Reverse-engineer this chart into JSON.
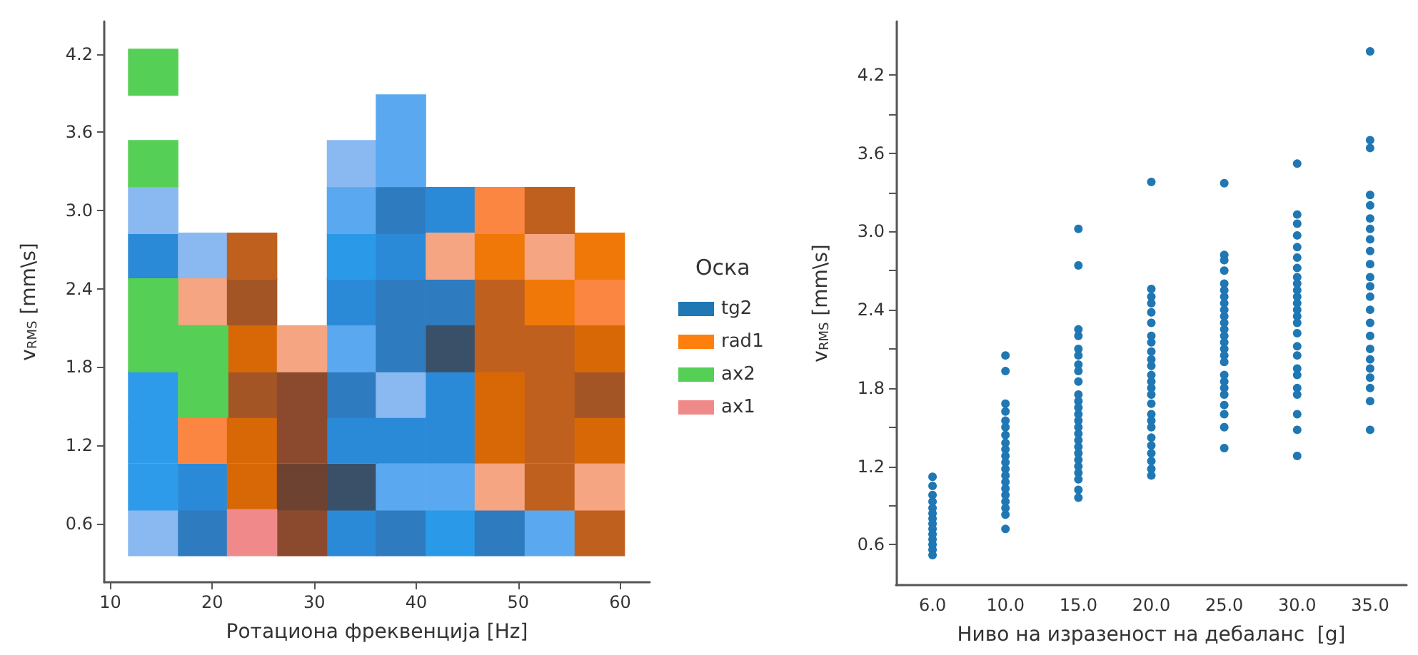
{
  "chart_data": [
    {
      "type": "scatter",
      "xlabel": "Ротациона фреквенција [Hz]",
      "ylabel": "v$_{RMS}$ [mm\\s]",
      "legend_title": "Оска",
      "legend": "right",
      "marker": "square",
      "grid": false,
      "xlim": [
        9.4,
        62.9
      ],
      "xticks": [
        10,
        20,
        30,
        40,
        50,
        60
      ],
      "ylim": [
        0.15,
        4.45
      ],
      "yticks": [
        0.6,
        1.2,
        1.8,
        2.4,
        {
          "value": 3,
          "label": "3.0"
        },
        3.6,
        4.2
      ],
      "series": [
        {
          "name": "tg2",
          "color": "#1f77b4",
          "x": [
            14.2,
            19.1,
            33.7,
            38.5,
            43.4,
            48.2,
            53.1,
            14.2,
            19.1,
            33.7,
            38.5,
            43.4,
            14.2,
            33.7,
            38.5,
            43.4,
            14.2,
            33.7,
            38.5,
            43.4,
            33.7,
            38.5,
            43.4,
            33.7,
            38.5,
            43.4,
            14.2,
            19.1,
            33.7,
            38.5,
            14.2,
            33.7,
            38.5,
            43.4,
            33.7,
            38.5,
            38.5
          ],
          "values": [
            0.53,
            0.53,
            0.53,
            0.53,
            0.53,
            0.53,
            0.53,
            0.88,
            0.88,
            0.88,
            0.88,
            0.88,
            1.24,
            1.24,
            1.24,
            1.24,
            1.59,
            1.59,
            1.59,
            1.59,
            1.94,
            1.94,
            1.94,
            2.3,
            2.3,
            2.3,
            2.65,
            2.65,
            2.65,
            2.65,
            3.0,
            3.0,
            3.0,
            3.0,
            3.36,
            3.36,
            3.71
          ],
          "colors": [
            "#8ab8f0",
            "#2e7bbf",
            "#2a8ad8",
            "#2e7bbf",
            "#2a9ae8",
            "#2e7bbf",
            "#5aa9f0",
            "#2e9bea",
            "#2a8ad8",
            "#3a5068",
            "#5aa9f0",
            "#5aa9f0",
            "#2e9bea",
            "#2a8ad8",
            "#2a8ad8",
            "#2a8ad8",
            "#2e9bea",
            "#2e7bbf",
            "#8ab8f0",
            "#2a8ad8",
            "#5aa9f0",
            "#2e7bbf",
            "#3a5068",
            "#2a8ad8",
            "#2e7bbf",
            "#2e7bbf",
            "#2a8ad8",
            "#8ab8f0",
            "#2a9ae8",
            "#2a8ad8",
            "#8ab8f0",
            "#5aa9f0",
            "#2e7bbf",
            "#2a8ad8",
            "#8ab8f0",
            "#5aa9f0",
            "#5aa9f0"
          ]
        },
        {
          "name": "rad1",
          "color": "#ff7f0e",
          "x": [
            28.8,
            58.0,
            23.9,
            28.8,
            48.2,
            53.1,
            58.0,
            19.1,
            23.9,
            28.8,
            48.2,
            53.1,
            58.0,
            23.9,
            28.8,
            48.2,
            53.1,
            58.0,
            23.9,
            28.8,
            48.2,
            53.1,
            58.0,
            19.1,
            23.9,
            48.2,
            53.1,
            58.0,
            23.9,
            43.4,
            48.2,
            53.1,
            58.0,
            48.2,
            53.1
          ],
          "values": [
            0.53,
            0.53,
            0.88,
            0.88,
            0.88,
            0.88,
            0.88,
            1.24,
            1.24,
            1.24,
            1.24,
            1.24,
            1.24,
            1.59,
            1.59,
            1.59,
            1.59,
            1.59,
            1.94,
            1.94,
            1.94,
            1.94,
            1.94,
            2.3,
            2.3,
            2.3,
            2.3,
            2.3,
            2.65,
            2.65,
            2.65,
            2.65,
            2.65,
            3.0,
            3.0
          ],
          "colors": [
            "#8b4a2e",
            "#c0601e",
            "#d86806",
            "#6e4230",
            "#f5a581",
            "#c0601e",
            "#f5a581",
            "#fa8642",
            "#d86806",
            "#8b4a2e",
            "#d86806",
            "#c0601e",
            "#d86806",
            "#a35526",
            "#8b4a2e",
            "#d86806",
            "#c0601e",
            "#a35526",
            "#d86806",
            "#f5a581",
            "#c0601e",
            "#c0601e",
            "#d86806",
            "#f5a581",
            "#a35526",
            "#c0601e",
            "#f07808",
            "#fa8642",
            "#c0601e",
            "#f5a581",
            "#f07808",
            "#f5a581",
            "#f07808",
            "#fa8642",
            "#c0601e"
          ]
        },
        {
          "name": "ax2",
          "color": "#56cf56",
          "x": [
            19.1,
            14.2,
            19.1,
            14.2,
            14.2,
            14.2
          ],
          "values": [
            1.59,
            1.94,
            1.94,
            2.3,
            3.36,
            4.06
          ],
          "colors": [
            "#56cf56",
            "#56cf56",
            "#56cf56",
            "#56cf56",
            "#56cf56",
            "#56cf56"
          ]
        },
        {
          "name": "ax1",
          "color": "#f08a8a",
          "x": [
            23.9
          ],
          "values": [
            0.53
          ],
          "colors": [
            "#f08a8a"
          ]
        }
      ]
    },
    {
      "type": "scatter",
      "xlabel": "Ниво на изразеност на дебаланс  [g]",
      "ylabel": "v$_{RMS}$ [mm\\s]",
      "marker": "circle",
      "grid": false,
      "legend": false,
      "categories": [
        "6.0",
        "10.0",
        "15.0",
        "20.0",
        "25.0",
        "30.0",
        "35.0"
      ],
      "ylim": [
        0.29,
        4.61
      ],
      "yticks": [
        0.6,
        {
          "value": 0.9,
          "label": null
        },
        1.2,
        {
          "value": 1.5,
          "label": null
        },
        1.8,
        {
          "value": 2.1,
          "label": null
        },
        2.4,
        {
          "value": 2.7,
          "label": null
        },
        {
          "value": 3,
          "label": "3.0"
        },
        {
          "value": 3.3,
          "label": null
        },
        3.6,
        {
          "value": 3.9,
          "label": null
        },
        4.2
      ],
      "series": [
        {
          "color": "#1f77b4",
          "x": [
            "6.0",
            "6.0",
            "6.0",
            "6.0",
            "6.0",
            "6.0",
            "6.0",
            "6.0",
            "6.0",
            "6.0",
            "6.0",
            "6.0",
            "6.0",
            "6.0",
            "10.0",
            "10.0",
            "10.0",
            "10.0",
            "10.0",
            "10.0",
            "10.0",
            "10.0",
            "10.0",
            "10.0",
            "10.0",
            "10.0",
            "10.0",
            "10.0",
            "10.0",
            "10.0",
            "10.0",
            "10.0",
            "10.0",
            "10.0",
            "15.0",
            "15.0",
            "15.0",
            "15.0",
            "15.0",
            "15.0",
            "15.0",
            "15.0",
            "15.0",
            "15.0",
            "15.0",
            "15.0",
            "15.0",
            "15.0",
            "15.0",
            "15.0",
            "15.0",
            "15.0",
            "15.0",
            "15.0",
            "15.0",
            "15.0",
            "15.0",
            "15.0",
            "15.0",
            "20.0",
            "20.0",
            "20.0",
            "20.0",
            "20.0",
            "20.0",
            "20.0",
            "20.0",
            "20.0",
            "20.0",
            "20.0",
            "20.0",
            "20.0",
            "20.0",
            "20.0",
            "20.0",
            "20.0",
            "20.0",
            "20.0",
            "20.0",
            "20.0",
            "20.0",
            "20.0",
            "20.0",
            "20.0",
            "25.0",
            "25.0",
            "25.0",
            "25.0",
            "25.0",
            "25.0",
            "25.0",
            "25.0",
            "25.0",
            "25.0",
            "25.0",
            "25.0",
            "25.0",
            "25.0",
            "25.0",
            "25.0",
            "25.0",
            "25.0",
            "25.0",
            "25.0",
            "25.0",
            "25.0",
            "25.0",
            "25.0",
            "25.0",
            "30.0",
            "30.0",
            "30.0",
            "30.0",
            "30.0",
            "30.0",
            "30.0",
            "30.0",
            "30.0",
            "30.0",
            "30.0",
            "30.0",
            "30.0",
            "30.0",
            "30.0",
            "30.0",
            "30.0",
            "30.0",
            "30.0",
            "30.0",
            "30.0",
            "30.0",
            "30.0",
            "30.0",
            "30.0",
            "35.0",
            "35.0",
            "35.0",
            "35.0",
            "35.0",
            "35.0",
            "35.0",
            "35.0",
            "35.0",
            "35.0",
            "35.0",
            "35.0",
            "35.0",
            "35.0",
            "35.0",
            "35.0",
            "35.0",
            "35.0",
            "35.0",
            "35.0",
            "35.0",
            "35.0",
            "35.0"
          ],
          "values": [
            1.12,
            1.05,
            0.98,
            0.93,
            0.88,
            0.84,
            0.8,
            0.76,
            0.72,
            0.68,
            0.64,
            0.6,
            0.56,
            0.52,
            2.05,
            1.93,
            1.68,
            1.62,
            1.55,
            1.5,
            1.44,
            1.38,
            1.33,
            1.28,
            1.23,
            1.18,
            1.13,
            1.08,
            1.03,
            0.98,
            0.93,
            0.88,
            0.83,
            0.72,
            3.02,
            2.74,
            2.25,
            2.2,
            2.1,
            2.05,
            1.98,
            1.93,
            1.85,
            1.75,
            1.7,
            1.65,
            1.6,
            1.55,
            1.5,
            1.45,
            1.4,
            1.35,
            1.3,
            1.25,
            1.2,
            1.15,
            1.1,
            1.02,
            0.96,
            3.38,
            2.56,
            2.5,
            2.45,
            2.38,
            2.3,
            2.2,
            2.15,
            2.08,
            2.02,
            1.97,
            1.9,
            1.85,
            1.8,
            1.75,
            1.68,
            1.6,
            1.55,
            1.5,
            1.42,
            1.36,
            1.3,
            1.24,
            1.18,
            1.13,
            3.37,
            2.82,
            2.78,
            2.7,
            2.6,
            2.55,
            2.5,
            2.45,
            2.4,
            2.35,
            2.3,
            2.25,
            2.2,
            2.15,
            2.1,
            2.05,
            2.0,
            1.9,
            1.85,
            1.8,
            1.75,
            1.67,
            1.6,
            1.5,
            1.34,
            3.52,
            3.13,
            3.06,
            2.97,
            2.88,
            2.8,
            2.72,
            2.65,
            2.6,
            2.55,
            2.5,
            2.45,
            2.4,
            2.35,
            2.3,
            2.22,
            2.12,
            2.05,
            1.95,
            1.9,
            1.8,
            1.75,
            1.6,
            1.48,
            1.28,
            4.38,
            3.7,
            3.64,
            3.28,
            3.2,
            3.1,
            3.02,
            2.94,
            2.85,
            2.75,
            2.65,
            2.58,
            2.5,
            2.4,
            2.3,
            2.2,
            2.1,
            2.02,
            1.95,
            1.88,
            1.8,
            1.7,
            1.48
          ]
        }
      ]
    }
  ]
}
